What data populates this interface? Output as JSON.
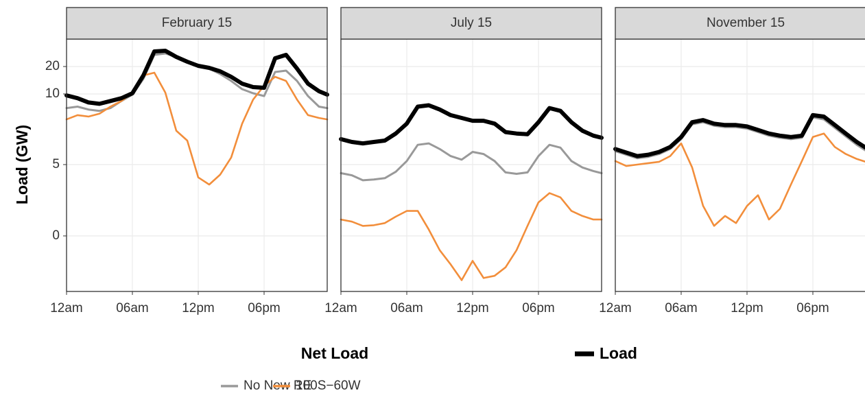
{
  "chart_data": [
    {
      "type": "line",
      "title": "February 15",
      "ylabel": "Load (GW)",
      "legend_title": "Net Load",
      "x": [
        0,
        1,
        2,
        3,
        4,
        5,
        6,
        7,
        8,
        9,
        10,
        11,
        12,
        13,
        14,
        15,
        16,
        17,
        18,
        19,
        20,
        21,
        22,
        23,
        23.75
      ],
      "xlim": [
        0,
        23.75
      ],
      "xticks": [
        {
          "value": 0,
          "label": "12am"
        },
        {
          "value": 6,
          "label": "06am"
        },
        {
          "value": 12,
          "label": "12pm"
        },
        {
          "value": 18,
          "label": "06pm"
        }
      ],
      "ylim": [
        -3.9,
        30
      ],
      "yticks": [
        0,
        5,
        10,
        20
      ],
      "grid": true,
      "series": [
        {
          "name": "Load",
          "color": "#000000",
          "values": [
            9.9,
            9.7,
            9.4,
            9.3,
            9.5,
            9.7,
            10.25,
            16.75,
            25.5,
            25.75,
            23.5,
            21.75,
            20.25,
            19.5,
            18.25,
            16.25,
            13.75,
            12.5,
            12.25,
            23,
            24.25,
            19.25,
            13.75,
            11,
            9.95
          ]
        },
        {
          "name": "No New RE",
          "color": "#999999",
          "values": [
            9.0,
            9.1,
            8.9,
            8.8,
            9.0,
            9.5,
            9.95,
            15.5,
            24.25,
            24.75,
            23.5,
            21.75,
            20.25,
            19.25,
            17.25,
            14.75,
            11.75,
            10.25,
            9.85,
            18,
            18.5,
            14.75,
            9.85,
            9.1,
            9.0
          ]
        },
        {
          "name": "100S−60W",
          "color": "#f28e3b",
          "values": [
            8.2,
            8.5,
            8.4,
            8.6,
            9.1,
            9.5,
            10.5,
            16.75,
            17.75,
            10.5,
            7.4,
            6.7,
            4.1,
            3.6,
            4.3,
            5.5,
            7.9,
            9.6,
            13,
            16.25,
            14.75,
            9.6,
            8.5,
            8.3,
            8.2
          ]
        }
      ]
    },
    {
      "type": "line",
      "title": "July 15",
      "x": [
        0,
        1,
        2,
        3,
        4,
        5,
        6,
        7,
        8,
        9,
        10,
        11,
        12,
        13,
        14,
        15,
        16,
        17,
        18,
        19,
        20,
        21,
        22,
        23,
        23.75
      ],
      "xlim": [
        0,
        23.75
      ],
      "xticks": [
        {
          "value": 0,
          "label": "12am"
        },
        {
          "value": 6,
          "label": "06am"
        },
        {
          "value": 12,
          "label": "12pm"
        },
        {
          "value": 18,
          "label": "06pm"
        }
      ],
      "ylim": [
        -3.9,
        30
      ],
      "yticks": [
        0,
        5,
        10,
        20
      ],
      "grid": true,
      "series": [
        {
          "name": "Load",
          "color": "#000000",
          "values": [
            6.8,
            6.6,
            6.5,
            6.6,
            6.7,
            7.2,
            7.9,
            9.1,
            9.2,
            8.9,
            8.5,
            8.3,
            8.1,
            8.1,
            7.9,
            7.3,
            7.2,
            7.15,
            8.0,
            9.0,
            8.8,
            8.0,
            7.4,
            7.05,
            6.9
          ]
        },
        {
          "name": "No New RE",
          "color": "#999999",
          "values": [
            4.4,
            4.25,
            3.9,
            3.95,
            4.05,
            4.5,
            5.25,
            6.4,
            6.5,
            6.1,
            5.6,
            5.35,
            5.9,
            5.75,
            5.25,
            4.45,
            4.35,
            4.45,
            5.6,
            6.4,
            6.2,
            5.25,
            4.8,
            4.55,
            4.4
          ]
        },
        {
          "name": "100S−60W",
          "color": "#f28e3b",
          "values": [
            1.15,
            1.0,
            0.7,
            0.75,
            0.9,
            1.35,
            1.75,
            1.75,
            0.45,
            -1.0,
            -2.0,
            -3.1,
            -1.75,
            -2.95,
            -2.8,
            -2.2,
            -1.0,
            0.7,
            2.35,
            3.0,
            2.7,
            1.75,
            1.4,
            1.15,
            1.15
          ]
        }
      ]
    },
    {
      "type": "line",
      "title": "November 15",
      "x": [
        0,
        1,
        2,
        3,
        4,
        5,
        6,
        7,
        8,
        9,
        10,
        11,
        12,
        13,
        14,
        15,
        16,
        17,
        18,
        19,
        20,
        21,
        22,
        23,
        23.75
      ],
      "xlim": [
        0,
        23.75
      ],
      "xticks": [
        {
          "value": 0,
          "label": "12am"
        },
        {
          "value": 6,
          "label": "06am"
        },
        {
          "value": 12,
          "label": "12pm"
        },
        {
          "value": 18,
          "label": "06pm"
        }
      ],
      "ylim": [
        -3.9,
        30
      ],
      "yticks": [
        0,
        5,
        10,
        20
      ],
      "grid": true,
      "series": [
        {
          "name": "Load",
          "color": "#000000",
          "values": [
            6.1,
            5.85,
            5.6,
            5.7,
            5.9,
            6.25,
            6.95,
            8.0,
            8.15,
            7.9,
            7.8,
            7.8,
            7.7,
            7.45,
            7.2,
            7.05,
            6.95,
            7.05,
            8.5,
            8.4,
            7.8,
            7.2,
            6.6,
            6.1,
            5.8
          ]
        },
        {
          "name": "No New RE",
          "color": "#999999",
          "values": [
            5.95,
            5.7,
            5.45,
            5.55,
            5.75,
            6.1,
            6.8,
            7.85,
            8.0,
            7.75,
            7.65,
            7.65,
            7.55,
            7.3,
            7.05,
            6.9,
            6.8,
            6.9,
            8.35,
            8.2,
            7.6,
            7.0,
            6.4,
            5.9,
            5.6
          ]
        },
        {
          "name": "100S−60W",
          "color": "#f28e3b",
          "values": [
            5.25,
            4.9,
            5.0,
            5.1,
            5.2,
            5.6,
            6.5,
            4.8,
            2.1,
            0.7,
            1.4,
            0.9,
            2.1,
            2.85,
            1.15,
            1.9,
            3.6,
            5.25,
            6.95,
            7.2,
            6.25,
            5.75,
            5.4,
            5.15,
            5.0
          ]
        }
      ]
    }
  ]
}
